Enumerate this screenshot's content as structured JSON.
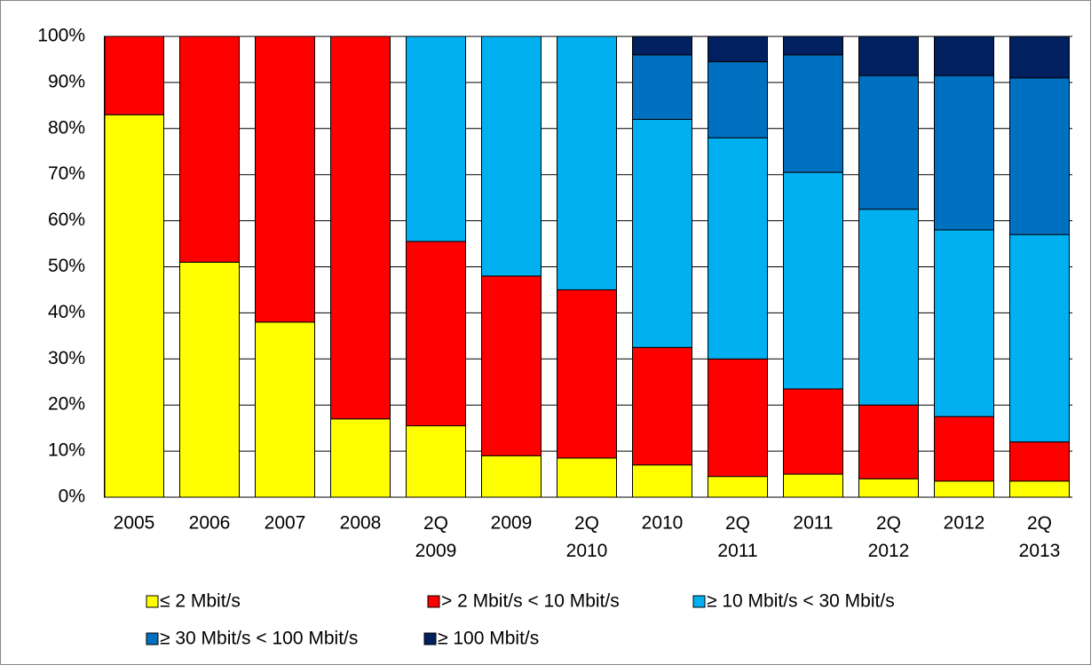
{
  "chart_data": {
    "type": "stacked_bar",
    "categories": [
      "2005",
      "2006",
      "2007",
      "2008",
      "2Q 2009",
      "2009",
      "2Q 2010",
      "2010",
      "2Q 2011",
      "2011",
      "2Q 2012",
      "2012",
      "2Q 2013"
    ],
    "series": [
      {
        "name": "≤  2 Mbit/s",
        "color": "#ffff00",
        "values": [
          83,
          51,
          38,
          17,
          15.5,
          9,
          8.5,
          7,
          4.5,
          5,
          4,
          3.5,
          3.5
        ]
      },
      {
        "name": "> 2 Mbit/s < 10 Mbit/s",
        "color": "#ff0000",
        "values": [
          17,
          49,
          62,
          83,
          40,
          39,
          36.5,
          25.5,
          25.5,
          18.5,
          16,
          14,
          8.5
        ]
      },
      {
        "name": "≥ 10 Mbit/s < 30 Mbit/s",
        "color": "#00b0f0",
        "values": [
          0,
          0,
          0,
          0,
          44.5,
          52,
          55,
          49.5,
          48,
          47,
          42.5,
          40.5,
          45
        ]
      },
      {
        "name": "≥ 30 Mbit/s < 100 Mbit/s",
        "color": "#0070c0",
        "values": [
          0,
          0,
          0,
          0,
          0,
          0,
          0,
          14,
          16.5,
          25.5,
          29,
          33.5,
          34
        ]
      },
      {
        "name": "≥ 100 Mbit/s",
        "color": "#002060",
        "values": [
          0,
          0,
          0,
          0,
          0,
          0,
          0,
          4,
          5.5,
          4,
          8.5,
          8.5,
          9
        ]
      }
    ],
    "ylim": [
      0,
      100
    ],
    "yticks": [
      {
        "value": 0,
        "label": "0%"
      },
      {
        "value": 10,
        "label": "10%"
      },
      {
        "value": 20,
        "label": "20%"
      },
      {
        "value": 30,
        "label": "30%"
      },
      {
        "value": 40,
        "label": "40%"
      },
      {
        "value": 50,
        "label": "50%"
      },
      {
        "value": 60,
        "label": "60%"
      },
      {
        "value": 70,
        "label": "70%"
      },
      {
        "value": 80,
        "label": "80%"
      },
      {
        "value": 90,
        "label": "90%"
      },
      {
        "value": 100,
        "label": "100%"
      }
    ],
    "grid": true,
    "legend": "bottom"
  }
}
